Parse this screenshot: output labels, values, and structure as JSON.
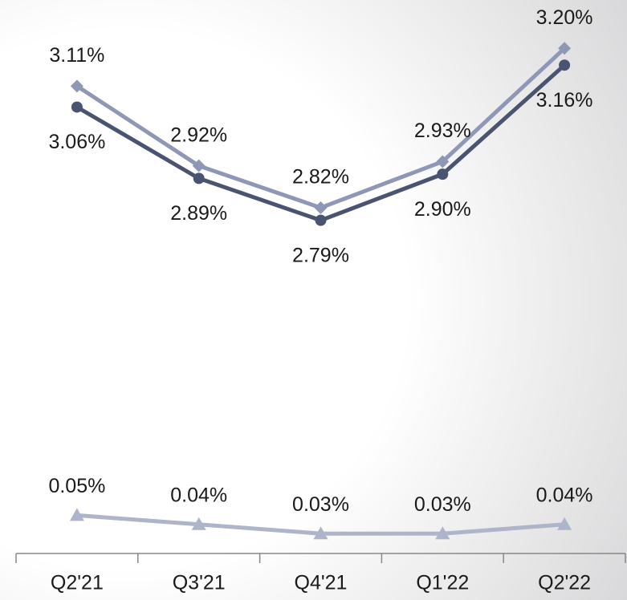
{
  "chart_data": [
    {
      "type": "line",
      "series": [
        {
          "color": "#8e97b5",
          "marker": "diamond",
          "values": [
            3.11,
            2.92,
            2.82,
            2.93,
            3.2
          ],
          "value_labels": [
            "3.11%",
            "2.92%",
            "2.82%",
            "2.93%",
            "3.20%"
          ]
        },
        {
          "color": "#4a5470",
          "marker": "circle",
          "values": [
            3.06,
            2.89,
            2.79,
            2.9,
            3.16
          ],
          "value_labels": [
            "3.06%",
            "2.89%",
            "2.79%",
            "2.90%",
            "3.16%"
          ]
        }
      ],
      "ylim": [
        2.6,
        3.3
      ]
    },
    {
      "type": "line",
      "categories": [
        "Q2'21",
        "Q3'21",
        "Q4'21",
        "Q1'22",
        "Q2'22"
      ],
      "series": [
        {
          "color": "#aeb4c9",
          "marker": "triangle",
          "values": [
            0.05,
            0.04,
            0.03,
            0.03,
            0.04
          ],
          "value_labels": [
            "0.05%",
            "0.04%",
            "0.03%",
            "0.03%",
            "0.04%"
          ]
        }
      ],
      "ylim": [
        0.01,
        0.06
      ]
    }
  ]
}
